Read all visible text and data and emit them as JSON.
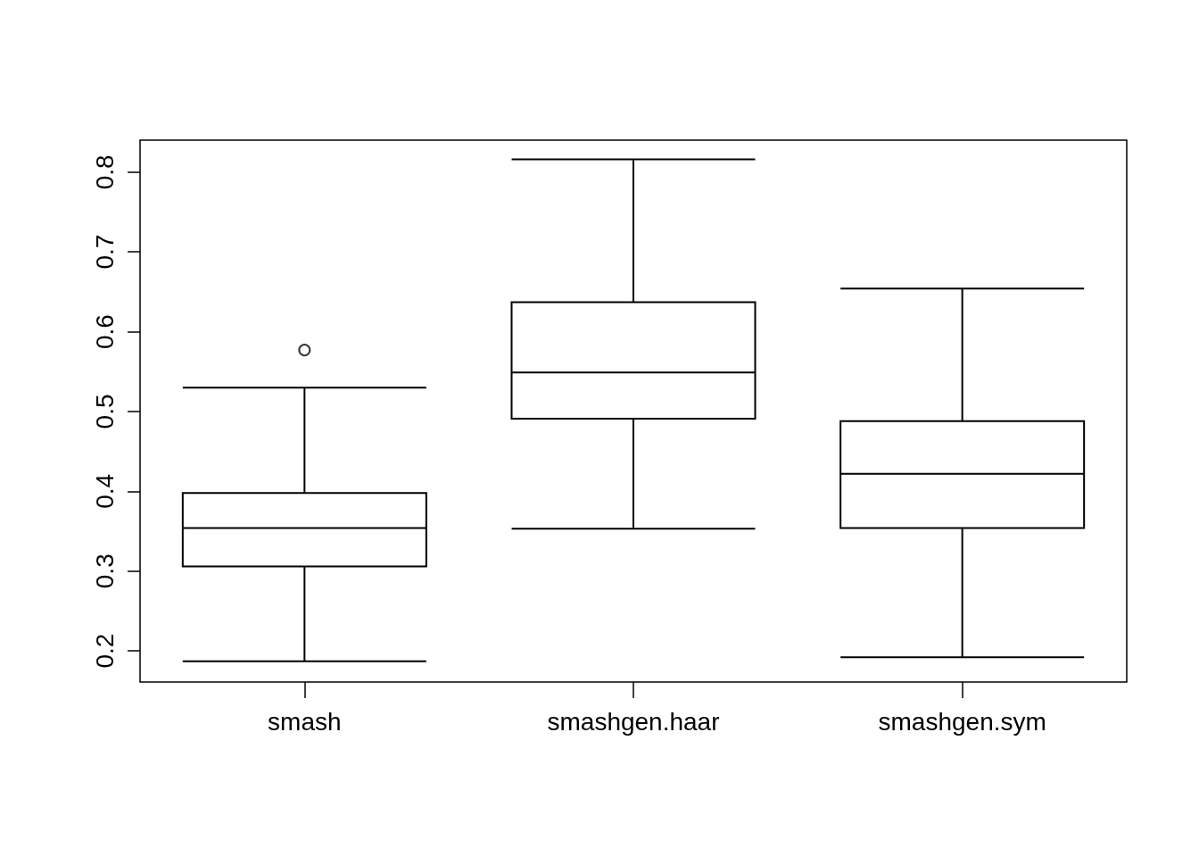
{
  "chart_data": {
    "type": "box",
    "categories": [
      "smash",
      "smashgen.haar",
      "smashgen.sym"
    ],
    "boxes": [
      {
        "low": 0.187,
        "q1": 0.306,
        "median": 0.354,
        "q3": 0.398,
        "high": 0.53,
        "outliers": [
          0.577
        ]
      },
      {
        "low": 0.353,
        "q1": 0.491,
        "median": 0.549,
        "q3": 0.637,
        "high": 0.816
      },
      {
        "low": 0.192,
        "q1": 0.354,
        "median": 0.422,
        "q3": 0.488,
        "high": 0.654
      }
    ],
    "color": "#000000",
    "ylim": [
      0.161,
      0.84
    ],
    "yticks": [
      0.2,
      0.3,
      0.4,
      0.5,
      0.6,
      0.7,
      0.8
    ],
    "grid": false
  }
}
